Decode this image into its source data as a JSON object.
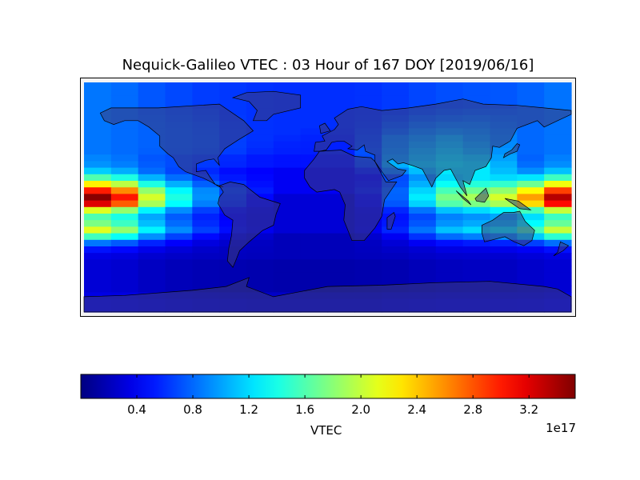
{
  "chart_data": {
    "type": "heatmap",
    "title": "Nequick-Galileo VTEC : 03 Hour of 167 DOY [2019/06/16]",
    "projection": "cylindrical world map with coastlines and country borders",
    "colormap": "jet",
    "colorbar": {
      "label": "VTEC",
      "exponent_label": "1e17",
      "range": [
        0.0,
        3.53
      ],
      "ticks": [
        0.4,
        0.8,
        1.2,
        1.6,
        2.0,
        2.4,
        2.8,
        3.2
      ],
      "tick_labels": [
        "0.4",
        "0.8",
        "1.2",
        "1.6",
        "2.0",
        "2.4",
        "2.8",
        "3.2"
      ],
      "orientation": "horizontal"
    },
    "units_scale": "1e17",
    "lon_range": [
      -180,
      180
    ],
    "lat_range": [
      -90,
      90
    ],
    "lon_centers": [
      -170,
      -150,
      -130,
      -110,
      -90,
      -70,
      -50,
      -30,
      -10,
      10,
      30,
      50,
      70,
      90,
      110,
      130,
      150,
      170
    ],
    "lat_centers": [
      87.5,
      82.5,
      77.5,
      72.5,
      67.5,
      62.5,
      57.5,
      52.5,
      47.5,
      42.5,
      37.5,
      32.5,
      27.5,
      22.5,
      17.5,
      12.5,
      7.5,
      2.5,
      -2.5,
      -7.5,
      -12.5,
      -17.5,
      -22.5,
      -27.5,
      -32.5,
      -37.5,
      -42.5,
      -47.5,
      -52.5,
      -57.5,
      -62.5,
      -67.5,
      -72.5,
      -77.5,
      -82.5
    ],
    "values": [
      [
        0.85,
        0.81,
        0.74,
        0.69,
        0.65,
        0.63,
        0.61,
        0.6,
        0.6,
        0.6,
        0.61,
        0.64,
        0.68,
        0.71,
        0.73,
        0.74,
        0.78,
        0.84
      ],
      [
        0.85,
        0.81,
        0.74,
        0.69,
        0.65,
        0.63,
        0.61,
        0.6,
        0.6,
        0.6,
        0.61,
        0.64,
        0.68,
        0.71,
        0.73,
        0.74,
        0.78,
        0.84
      ],
      [
        0.85,
        0.81,
        0.74,
        0.69,
        0.65,
        0.63,
        0.61,
        0.6,
        0.6,
        0.6,
        0.61,
        0.64,
        0.68,
        0.71,
        0.73,
        0.74,
        0.78,
        0.84
      ],
      [
        0.85,
        0.81,
        0.74,
        0.69,
        0.65,
        0.63,
        0.61,
        0.6,
        0.6,
        0.6,
        0.61,
        0.64,
        0.68,
        0.71,
        0.73,
        0.74,
        0.78,
        0.84
      ],
      [
        0.85,
        0.81,
        0.76,
        0.72,
        0.68,
        0.63,
        0.61,
        0.6,
        0.6,
        0.6,
        0.61,
        0.66,
        0.72,
        0.76,
        0.78,
        0.78,
        0.8,
        0.84
      ],
      [
        0.85,
        0.81,
        0.77,
        0.74,
        0.7,
        0.64,
        0.61,
        0.6,
        0.6,
        0.6,
        0.62,
        0.7,
        0.78,
        0.82,
        0.84,
        0.82,
        0.8,
        0.84
      ],
      [
        0.85,
        0.81,
        0.78,
        0.75,
        0.72,
        0.65,
        0.61,
        0.6,
        0.6,
        0.6,
        0.64,
        0.75,
        0.85,
        0.9,
        0.9,
        0.85,
        0.8,
        0.84
      ],
      [
        0.85,
        0.81,
        0.78,
        0.76,
        0.73,
        0.66,
        0.61,
        0.6,
        0.58,
        0.58,
        0.66,
        0.8,
        0.92,
        0.98,
        0.95,
        0.88,
        0.8,
        0.84
      ],
      [
        0.85,
        0.81,
        0.78,
        0.76,
        0.74,
        0.66,
        0.61,
        0.58,
        0.56,
        0.56,
        0.68,
        0.9,
        1.0,
        1.1,
        1.0,
        0.9,
        0.8,
        0.84
      ],
      [
        0.85,
        0.81,
        0.78,
        0.76,
        0.74,
        0.66,
        0.6,
        0.56,
        0.55,
        0.55,
        0.7,
        0.92,
        1.05,
        1.15,
        1.05,
        0.92,
        0.8,
        0.84
      ],
      [
        0.85,
        0.81,
        0.77,
        0.75,
        0.72,
        0.65,
        0.58,
        0.55,
        0.54,
        0.55,
        0.72,
        0.95,
        1.1,
        1.2,
        1.1,
        0.95,
        0.8,
        0.84
      ],
      [
        0.9,
        0.84,
        0.74,
        0.7,
        0.66,
        0.58,
        0.52,
        0.5,
        0.5,
        0.5,
        0.7,
        1.0,
        1.15,
        1.25,
        1.2,
        1.0,
        0.78,
        0.88
      ],
      [
        0.95,
        0.88,
        0.76,
        0.7,
        0.64,
        0.57,
        0.52,
        0.5,
        0.5,
        0.5,
        0.68,
        1.05,
        1.2,
        1.3,
        1.25,
        1.05,
        0.82,
        0.93
      ],
      [
        1.15,
        1.04,
        0.81,
        0.68,
        0.58,
        0.48,
        0.44,
        0.4,
        0.4,
        0.4,
        0.55,
        0.9,
        1.1,
        1.25,
        1.25,
        1.1,
        0.93,
        1.11
      ],
      [
        1.6,
        1.42,
        1.06,
        0.82,
        0.64,
        0.52,
        0.46,
        0.4,
        0.4,
        0.4,
        0.46,
        0.7,
        0.95,
        1.2,
        1.25,
        1.2,
        1.24,
        1.54
      ],
      [
        2.25,
        1.97,
        1.42,
        1.05,
        0.77,
        0.59,
        0.49,
        0.4,
        0.4,
        0.4,
        0.49,
        0.72,
        1.05,
        1.35,
        1.45,
        1.5,
        1.7,
        2.16
      ],
      [
        3.0,
        2.61,
        1.83,
        1.31,
        0.92,
        0.66,
        0.53,
        0.4,
        0.4,
        0.4,
        0.53,
        0.79,
        1.18,
        1.57,
        1.7,
        1.83,
        2.22,
        2.87
      ],
      [
        3.5,
        3.02,
        2.06,
        1.42,
        0.94,
        0.62,
        0.46,
        0.3,
        0.3,
        0.3,
        0.46,
        0.78,
        1.26,
        1.74,
        1.9,
        2.06,
        2.54,
        3.34
      ],
      [
        3.2,
        2.77,
        1.9,
        1.32,
        0.88,
        0.59,
        0.45,
        0.3,
        0.3,
        0.3,
        0.45,
        0.74,
        1.17,
        1.61,
        1.75,
        1.9,
        2.33,
        3.06
      ],
      [
        2.1,
        1.83,
        1.29,
        0.93,
        0.66,
        0.48,
        0.39,
        0.3,
        0.3,
        0.3,
        0.39,
        0.57,
        0.84,
        1.11,
        1.2,
        1.29,
        1.56,
        2.01
      ],
      [
        1.6,
        1.41,
        1.02,
        0.76,
        0.56,
        0.43,
        0.37,
        0.3,
        0.3,
        0.3,
        0.37,
        0.5,
        0.69,
        0.89,
        0.95,
        1.02,
        1.21,
        1.54
      ],
      [
        1.75,
        1.53,
        1.1,
        0.81,
        0.59,
        0.45,
        0.37,
        0.3,
        0.3,
        0.3,
        0.37,
        0.52,
        0.74,
        0.95,
        1.03,
        1.1,
        1.32,
        1.68
      ],
      [
        2.1,
        1.83,
        1.29,
        0.93,
        0.66,
        0.48,
        0.39,
        0.3,
        0.3,
        0.3,
        0.39,
        0.57,
        0.84,
        1.11,
        1.2,
        1.29,
        1.56,
        2.01
      ],
      [
        1.55,
        1.35,
        0.94,
        0.67,
        0.47,
        0.34,
        0.27,
        0.2,
        0.2,
        0.2,
        0.27,
        0.4,
        0.61,
        0.81,
        0.88,
        0.94,
        1.15,
        1.48
      ],
      [
        0.85,
        0.75,
        0.56,
        0.43,
        0.33,
        0.27,
        0.23,
        0.2,
        0.2,
        0.2,
        0.23,
        0.3,
        0.4,
        0.49,
        0.53,
        0.56,
        0.66,
        0.82
      ],
      [
        0.5,
        0.46,
        0.37,
        0.31,
        0.26,
        0.23,
        0.22,
        0.2,
        0.2,
        0.2,
        0.22,
        0.25,
        0.29,
        0.34,
        0.35,
        0.37,
        0.41,
        0.49
      ],
      [
        0.35,
        0.33,
        0.28,
        0.25,
        0.23,
        0.22,
        0.21,
        0.2,
        0.2,
        0.2,
        0.21,
        0.22,
        0.25,
        0.27,
        0.28,
        0.28,
        0.31,
        0.34
      ],
      [
        0.3,
        0.28,
        0.23,
        0.2,
        0.18,
        0.17,
        0.16,
        0.15,
        0.15,
        0.15,
        0.16,
        0.17,
        0.2,
        0.22,
        0.23,
        0.23,
        0.26,
        0.29
      ],
      [
        0.3,
        0.28,
        0.23,
        0.2,
        0.18,
        0.17,
        0.16,
        0.15,
        0.15,
        0.15,
        0.16,
        0.17,
        0.2,
        0.22,
        0.23,
        0.23,
        0.26,
        0.29
      ],
      [
        0.3,
        0.28,
        0.23,
        0.2,
        0.18,
        0.17,
        0.16,
        0.15,
        0.15,
        0.15,
        0.16,
        0.17,
        0.2,
        0.22,
        0.23,
        0.23,
        0.26,
        0.29
      ],
      [
        0.3,
        0.28,
        0.23,
        0.2,
        0.18,
        0.17,
        0.16,
        0.15,
        0.15,
        0.15,
        0.16,
        0.17,
        0.2,
        0.22,
        0.23,
        0.23,
        0.26,
        0.29
      ],
      [
        0.3,
        0.28,
        0.23,
        0.2,
        0.18,
        0.17,
        0.16,
        0.15,
        0.15,
        0.15,
        0.16,
        0.17,
        0.2,
        0.22,
        0.23,
        0.23,
        0.26,
        0.29
      ],
      [
        0.35,
        0.34,
        0.31,
        0.29,
        0.27,
        0.26,
        0.25,
        0.25,
        0.25,
        0.25,
        0.25,
        0.27,
        0.28,
        0.3,
        0.3,
        0.31,
        0.32,
        0.35
      ],
      [
        0.4,
        0.39,
        0.36,
        0.34,
        0.32,
        0.31,
        0.3,
        0.3,
        0.3,
        0.3,
        0.3,
        0.32,
        0.33,
        0.35,
        0.35,
        0.36,
        0.37,
        0.4
      ],
      [
        0.4,
        0.39,
        0.36,
        0.34,
        0.32,
        0.31,
        0.3,
        0.3,
        0.3,
        0.3,
        0.3,
        0.32,
        0.33,
        0.35,
        0.35,
        0.36,
        0.37,
        0.4
      ]
    ],
    "colors": {
      "land_overlay": "#3c3c78",
      "coastline": "#000000"
    }
  }
}
